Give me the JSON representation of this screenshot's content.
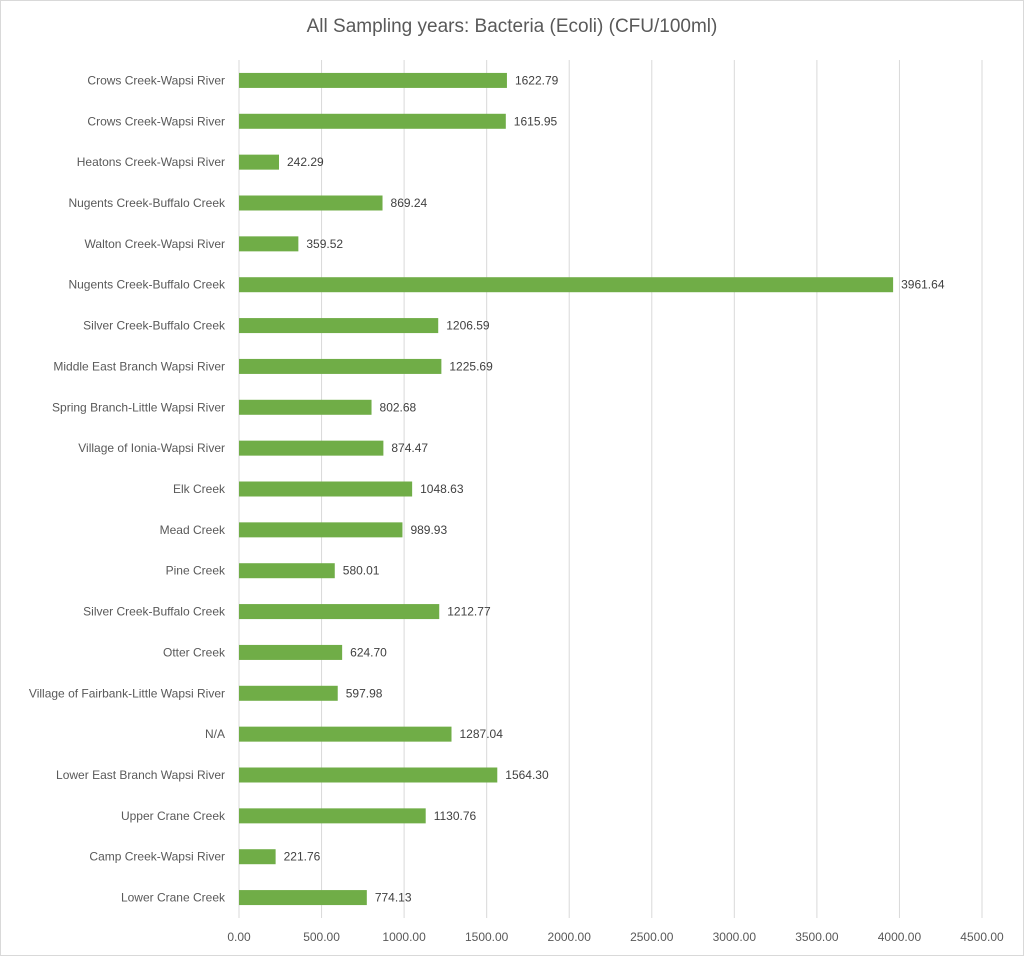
{
  "chart_data": {
    "type": "bar",
    "orientation": "horizontal",
    "title": "All Sampling years: Bacteria (Ecoli)  (CFU/100ml)",
    "xlabel": "",
    "ylabel": "",
    "xlim": [
      0,
      4500
    ],
    "ticks": [
      "0.00",
      "500.00",
      "1000.00",
      "1500.00",
      "2000.00",
      "2500.00",
      "3000.00",
      "3500.00",
      "4000.00",
      "4500.00"
    ],
    "grid": true,
    "bar_color": "#70ad47",
    "categories": [
      "Crows Creek-Wapsi River",
      "Crows Creek-Wapsi River",
      "Heatons Creek-Wapsi River",
      "Nugents Creek-Buffalo Creek",
      "Walton Creek-Wapsi River",
      "Nugents Creek-Buffalo Creek",
      "Silver Creek-Buffalo Creek",
      "Middle East Branch Wapsi River",
      "Spring Branch-Little Wapsi River",
      "Village of Ionia-Wapsi River",
      "Elk Creek",
      "Mead Creek",
      "Pine Creek",
      "Silver Creek-Buffalo Creek",
      "Otter Creek",
      "Village of Fairbank-Little Wapsi River",
      "N/A",
      "Lower East Branch Wapsi River",
      "Upper Crane Creek",
      "Camp Creek-Wapsi River",
      "Lower Crane Creek"
    ],
    "values": [
      1622.79,
      1615.95,
      242.29,
      869.24,
      359.52,
      3961.64,
      1206.59,
      1225.69,
      802.68,
      874.47,
      1048.63,
      989.93,
      580.01,
      1212.77,
      624.7,
      597.98,
      1287.04,
      1564.3,
      1130.76,
      221.76,
      774.13
    ],
    "value_labels": [
      "1622.79",
      "1615.95",
      "242.29",
      "869.24",
      "359.52",
      "3961.64",
      "1206.59",
      "1225.69",
      "802.68",
      "874.47",
      "1048.63",
      "989.93",
      "580.01",
      "1212.77",
      "624.70",
      "597.98",
      "1287.04",
      "1564.30",
      "1130.76",
      "221.76",
      "774.13"
    ]
  }
}
